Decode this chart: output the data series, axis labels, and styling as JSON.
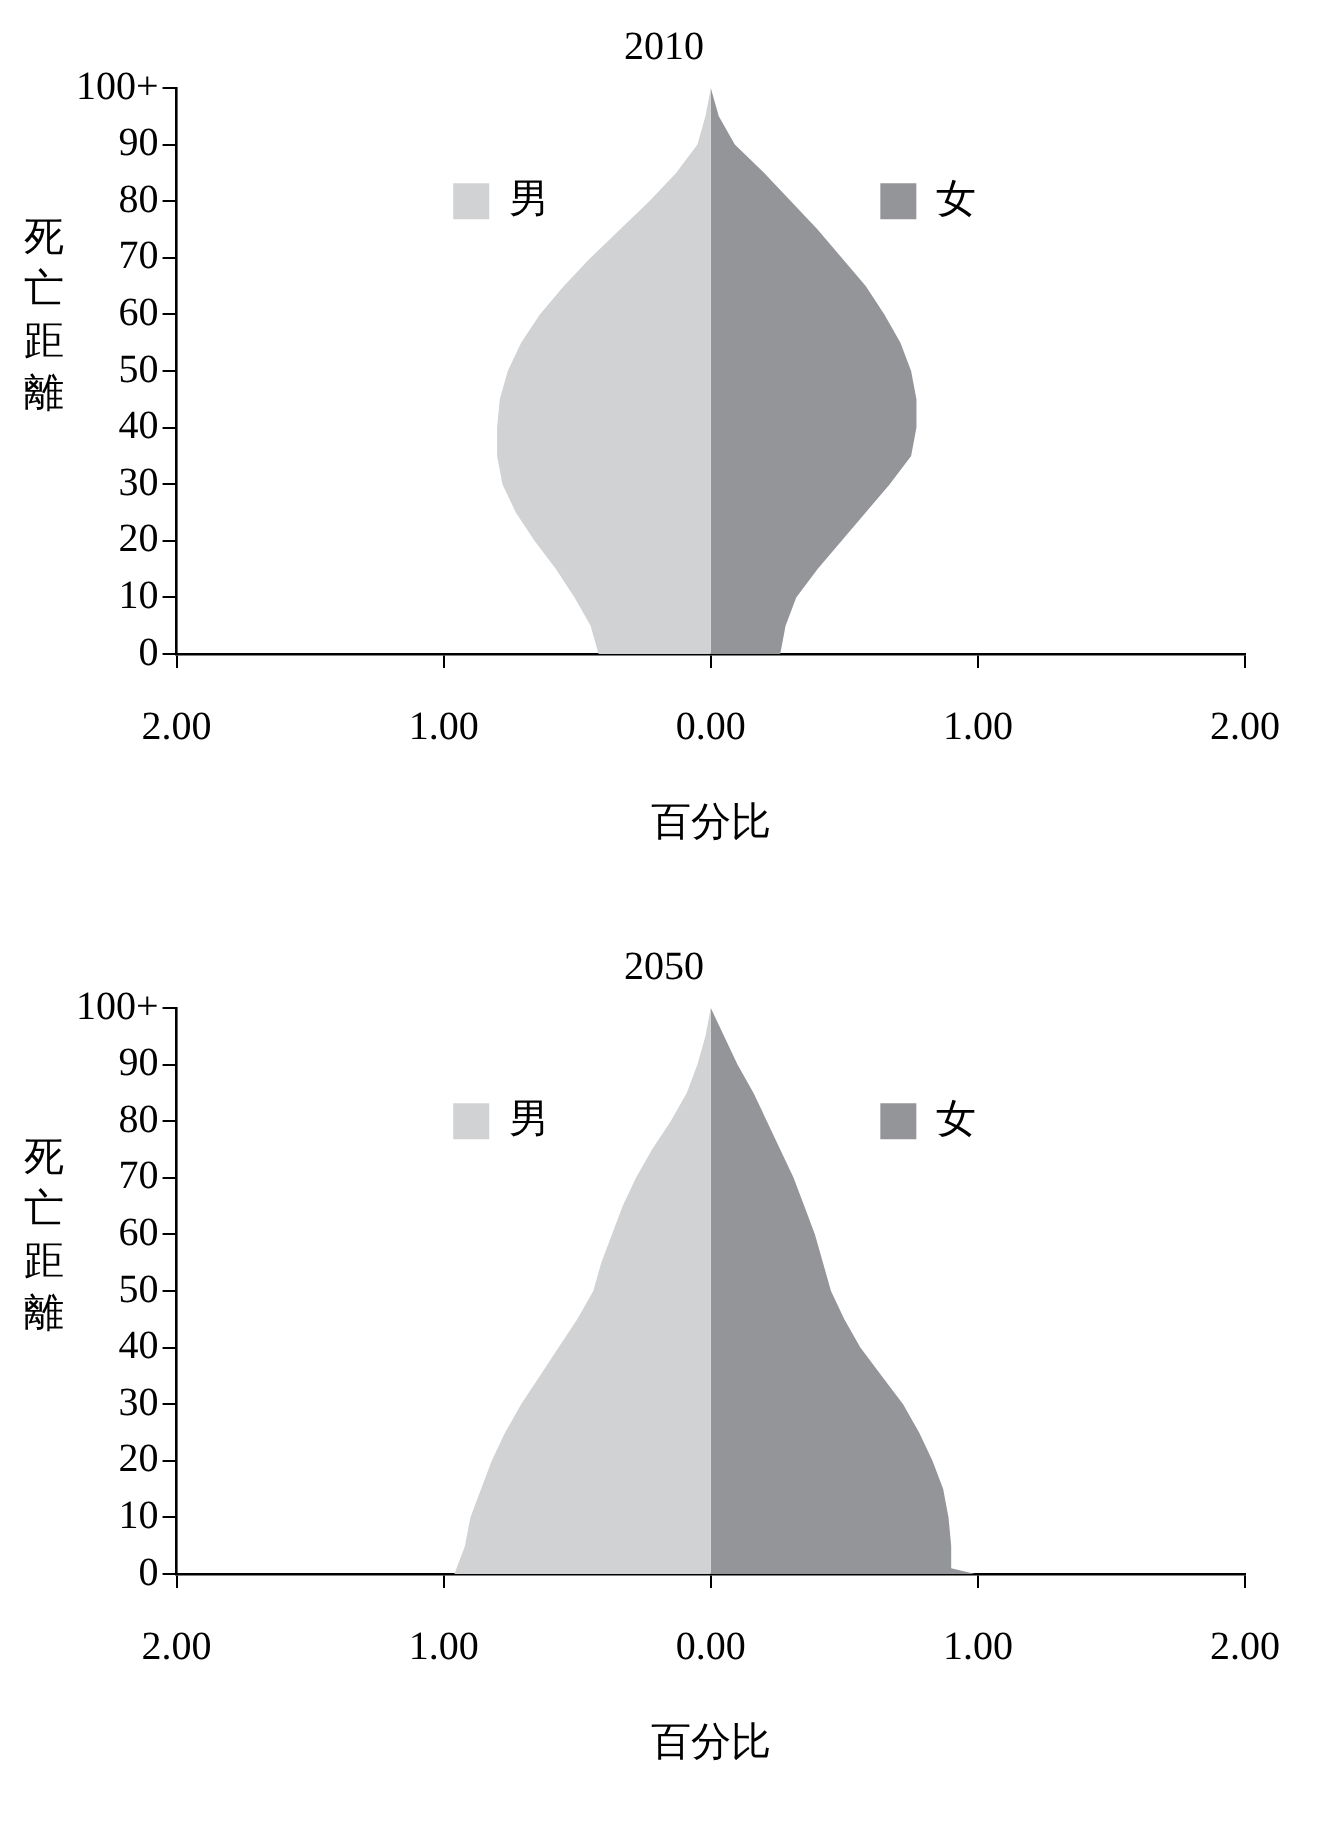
{
  "chart_data": [
    {
      "type": "area",
      "orientation": "horizontal",
      "title": "2010",
      "xlabel": "百分比",
      "ylabel": "死亡距離",
      "x": [
        0,
        5,
        10,
        15,
        20,
        25,
        30,
        35,
        40,
        45,
        50,
        55,
        60,
        65,
        70,
        75,
        80,
        85,
        90,
        95,
        100
      ],
      "series": [
        {
          "name": "男",
          "color": "#d1d2d4",
          "values": [
            -0.42,
            -0.45,
            -0.51,
            -0.58,
            -0.66,
            -0.73,
            -0.78,
            -0.8,
            -0.8,
            -0.79,
            -0.76,
            -0.71,
            -0.64,
            -0.55,
            -0.45,
            -0.34,
            -0.23,
            -0.13,
            -0.05,
            -0.02,
            0
          ]
        },
        {
          "name": "女",
          "color": "#939598",
          "values": [
            0.26,
            0.28,
            0.32,
            0.4,
            0.49,
            0.58,
            0.67,
            0.75,
            0.77,
            0.77,
            0.75,
            0.71,
            0.65,
            0.58,
            0.49,
            0.4,
            0.3,
            0.2,
            0.09,
            0.03,
            0
          ]
        }
      ],
      "xlim": [
        -2,
        2
      ],
      "xticks": [
        {
          "value": -2,
          "label": "2.00"
        },
        {
          "value": -1,
          "label": "1.00"
        },
        {
          "value": 0,
          "label": "0.00"
        },
        {
          "value": 1,
          "label": "1.00"
        },
        {
          "value": 2,
          "label": "2.00"
        }
      ],
      "ylim": [
        0,
        100
      ],
      "yticks": [
        0,
        10,
        20,
        30,
        40,
        50,
        60,
        70,
        80,
        90,
        {
          "value": 100,
          "label": "100+"
        }
      ],
      "grid": false,
      "legend": "top"
    },
    {
      "type": "area",
      "orientation": "horizontal",
      "title": "2050",
      "xlabel": "百分比",
      "ylabel": "死亡距離",
      "x": [
        0,
        5,
        10,
        15,
        20,
        25,
        30,
        35,
        40,
        45,
        50,
        55,
        60,
        65,
        70,
        75,
        80,
        85,
        90,
        95,
        100
      ],
      "series": [
        {
          "name": "男",
          "color": "#d1d2d4",
          "values": [
            -0.96,
            -0.92,
            -0.9,
            -0.86,
            -0.82,
            -0.77,
            -0.71,
            -0.64,
            -0.57,
            -0.5,
            -0.44,
            -0.41,
            -0.37,
            -0.33,
            -0.28,
            -0.22,
            -0.15,
            -0.09,
            -0.05,
            -0.02,
            0
          ]
        },
        {
          "name": "女",
          "color": "#939598",
          "x": [
            0,
            1,
            5,
            10,
            15,
            20,
            25,
            30,
            35,
            40,
            45,
            50,
            55,
            60,
            65,
            70,
            75,
            80,
            85,
            90,
            95,
            100
          ],
          "values": [
            0.99,
            0.9,
            0.9,
            0.89,
            0.87,
            0.83,
            0.78,
            0.72,
            0.64,
            0.56,
            0.5,
            0.45,
            0.42,
            0.39,
            0.35,
            0.31,
            0.26,
            0.21,
            0.16,
            0.1,
            0.05,
            0
          ]
        }
      ],
      "xlim": [
        -2,
        2
      ],
      "xticks": [
        {
          "value": -2,
          "label": "2.00"
        },
        {
          "value": -1,
          "label": "1.00"
        },
        {
          "value": 0,
          "label": "0.00"
        },
        {
          "value": 1,
          "label": "1.00"
        },
        {
          "value": 2,
          "label": "2.00"
        }
      ],
      "ylim": [
        0,
        100
      ],
      "yticks": [
        0,
        10,
        20,
        30,
        40,
        50,
        60,
        70,
        80,
        90,
        {
          "value": 100,
          "label": "100+"
        }
      ],
      "grid": false,
      "legend": "top"
    }
  ]
}
